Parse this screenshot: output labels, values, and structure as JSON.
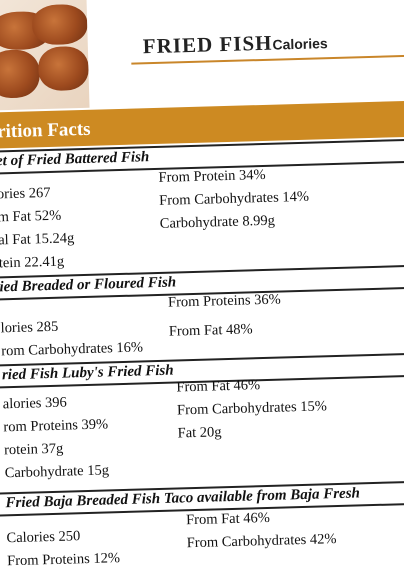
{
  "header": {
    "title": "FRIED FISH",
    "subtitle": "Calories"
  },
  "banner": "rition Facts",
  "sections": [
    {
      "title": "et of Fried Battered Fish",
      "left": [
        "ories 267",
        "m Fat 52%",
        "al Fat 15.24g",
        "tein 22.41g"
      ],
      "right": [
        "From Protein 34%",
        "From Carbohydrates 14%",
        "Carbohydrate 8.99g"
      ]
    },
    {
      "title": "ied Breaded or Floured Fish",
      "left": [
        "lories 285",
        "rom Carbohydrates 16%"
      ],
      "right": [
        "From Proteins 36%",
        "From Fat 48%"
      ]
    },
    {
      "title": "ried Fish Luby's Fried Fish",
      "left": [
        "alories 396",
        "rom Proteins 39%",
        "rotein 37g",
        "Carbohydrate 15g"
      ],
      "right": [
        "From Fat 46%",
        "From Carbohydrates 15%",
        "Fat 20g"
      ]
    },
    {
      "title": "Fried Baja Breaded Fish Taco available from Baja Fresh",
      "left": [
        "Calories 250",
        "From Proteins 12%"
      ],
      "right": [
        "From Fat 46%",
        "From Carbohydrates 42%"
      ]
    }
  ]
}
